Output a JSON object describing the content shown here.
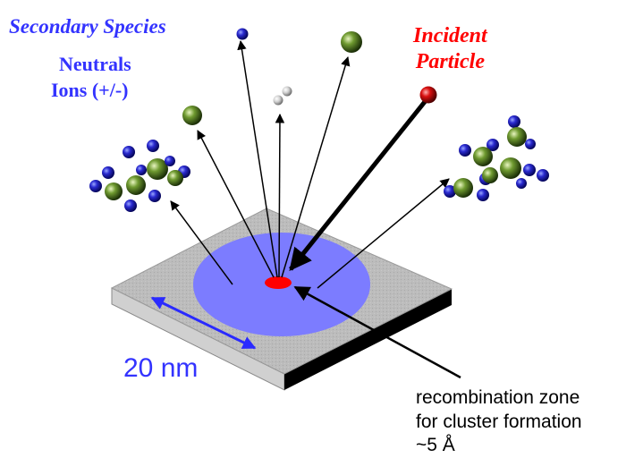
{
  "labels": {
    "secondary_species": "Secondary Species",
    "neutrals": "Neutrals",
    "ions": "Ions (+/-)",
    "incident_particle_line1": "Incident",
    "incident_particle_line2": "Particle",
    "scale_bar": "20 nm",
    "zone_line1": "recombination zone",
    "zone_line2": "for cluster formation",
    "zone_line3": "~5 Å"
  },
  "colors": {
    "label_blue": "#3333ff",
    "label_red": "#ff0000",
    "zone_text": "#000000",
    "surface_top": "#b8b8b8",
    "surface_edge_light": "#d0d0d0",
    "surface_edge_dark": "#000000",
    "impact_area": "#7c7cff",
    "impact_core": "#ff0000",
    "blue_atom": "#1a1aa0",
    "green_atom": "#5a8a2a",
    "red_atom": "#cc0000",
    "white_atom": "#d8d8d8",
    "arrow": "#000000"
  }
}
